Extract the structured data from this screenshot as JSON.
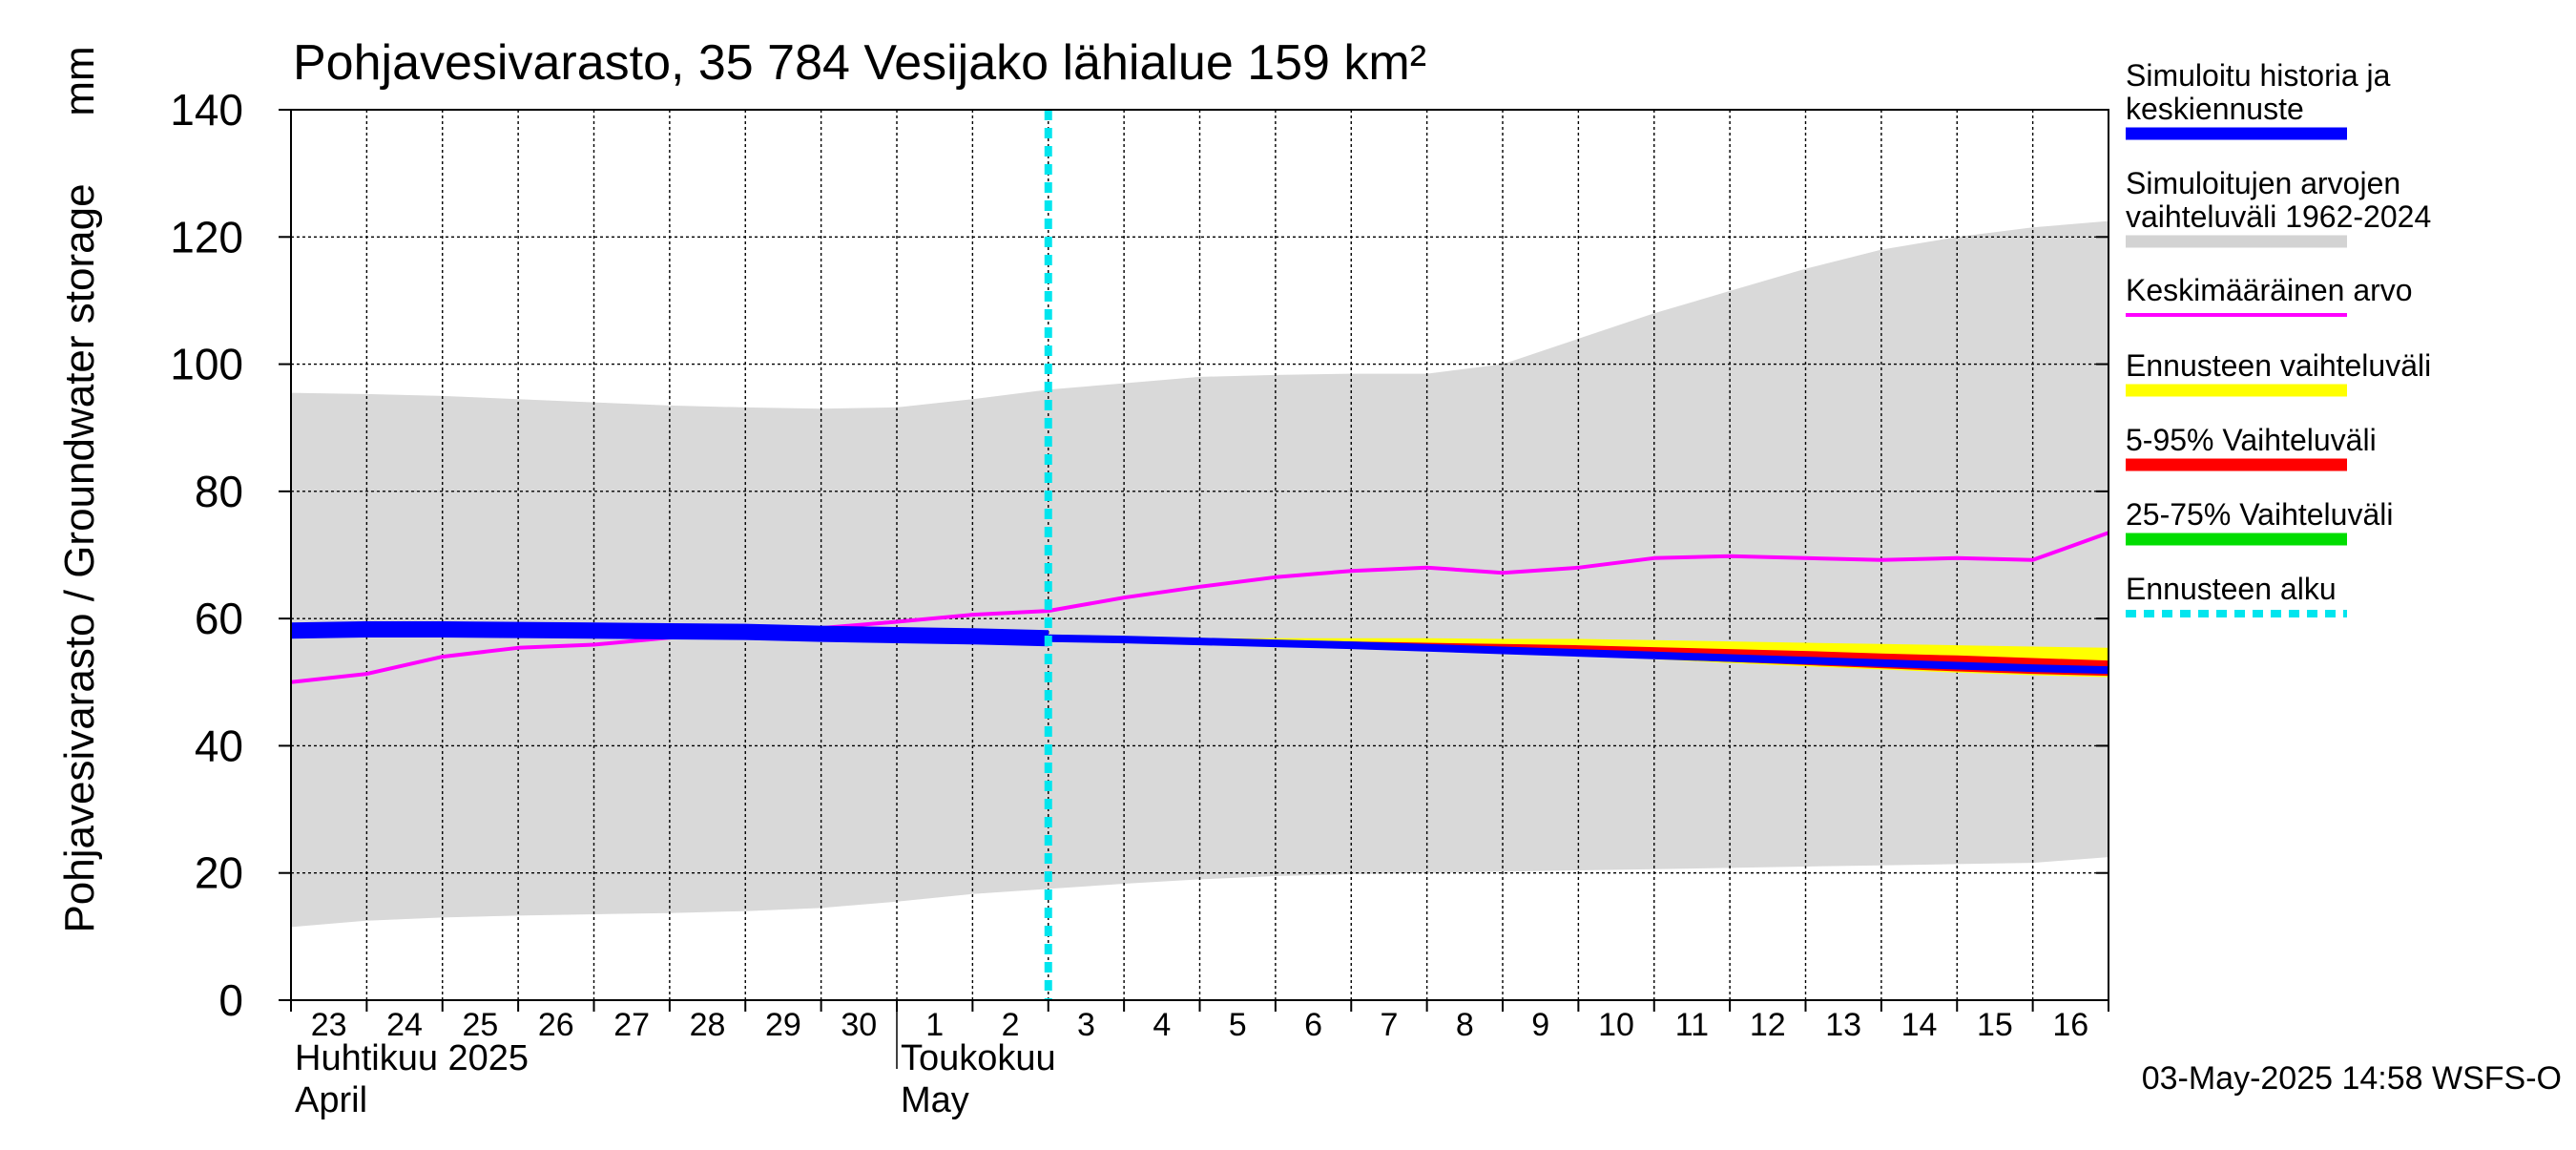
{
  "chart_data": {
    "type": "line",
    "title": "Pohjavesivarasto, 35 784 Vesijako lähialue 159 km²",
    "ylabel": "Pohjavesivarasto / Groundwater storage",
    "yunit": "mm",
    "ylim": [
      0,
      140
    ],
    "yticks": [
      0,
      20,
      40,
      60,
      80,
      100,
      120,
      140
    ],
    "x_day_labels": [
      "23",
      "24",
      "25",
      "26",
      "27",
      "28",
      "29",
      "30",
      "1",
      "2",
      "3",
      "4",
      "5",
      "6",
      "7",
      "8",
      "9",
      "10",
      "11",
      "12",
      "13",
      "14",
      "15",
      "16"
    ],
    "x_dates": [
      "2025-04-23",
      "2025-04-24",
      "2025-04-25",
      "2025-04-26",
      "2025-04-27",
      "2025-04-28",
      "2025-04-29",
      "2025-04-30",
      "2025-05-01",
      "2025-05-02",
      "2025-05-03",
      "2025-05-04",
      "2025-05-05",
      "2025-05-06",
      "2025-05-07",
      "2025-05-08",
      "2025-05-09",
      "2025-05-10",
      "2025-05-11",
      "2025-05-12",
      "2025-05-13",
      "2025-05-14",
      "2025-05-15",
      "2025-05-16",
      "2025-05-17"
    ],
    "month_labels": [
      {
        "fi": "Huhtikuu  2025",
        "en": "April"
      },
      {
        "fi": "Toukokuu",
        "en": "May"
      }
    ],
    "grid": true,
    "forecast_start": "2025-05-03",
    "series": [
      {
        "name": "Simuloitujen arvojen vaihteluväli 1962-2024",
        "kind": "band",
        "color": "#d9d9d9",
        "upper": [
          95.5,
          95.3,
          95,
          94.5,
          94,
          93.5,
          93.2,
          93,
          93.2,
          94.5,
          96,
          97,
          98,
          98.3,
          98.5,
          98.5,
          100,
          104,
          108,
          111.5,
          115,
          118,
          120,
          121.5,
          122.5
        ],
        "lower": [
          11.5,
          12.5,
          13,
          13.3,
          13.5,
          13.7,
          14,
          14.5,
          15.5,
          16.7,
          17.5,
          18.3,
          19,
          19.5,
          19.8,
          20,
          20.2,
          20.4,
          20.6,
          20.8,
          21,
          21.2,
          21.4,
          21.6,
          22.5
        ]
      },
      {
        "name": "Ennusteen vaihteluväli",
        "kind": "band",
        "color": "#ffff00",
        "upper": [
          null,
          null,
          null,
          null,
          null,
          null,
          null,
          null,
          null,
          null,
          56.9,
          56.9,
          56.9,
          56.9,
          56.9,
          56.9,
          56.8,
          56.8,
          56.6,
          56.4,
          56.2,
          56,
          55.8,
          55.6,
          55.4
        ],
        "lower": [
          null,
          null,
          null,
          null,
          null,
          null,
          null,
          null,
          null,
          null,
          56.9,
          56.6,
          56.3,
          56,
          55.6,
          55.2,
          54.7,
          54.2,
          53.6,
          53,
          52.5,
          52,
          51.5,
          51.1,
          50.8
        ]
      },
      {
        "name": "5-95% Vaihteluväli",
        "kind": "band",
        "color": "#ff0000",
        "upper": [
          null,
          null,
          null,
          null,
          null,
          null,
          null,
          null,
          null,
          null,
          56.9,
          56.8,
          56.7,
          56.6,
          56.4,
          56.2,
          56,
          55.8,
          55.5,
          55.2,
          54.9,
          54.5,
          54.2,
          53.8,
          53.4
        ],
        "lower": [
          null,
          null,
          null,
          null,
          null,
          null,
          null,
          null,
          null,
          null,
          56.9,
          56.6,
          56.3,
          56,
          55.6,
          55.2,
          54.7,
          54.3,
          53.7,
          53.2,
          52.7,
          52.2,
          51.7,
          51.3,
          51
        ]
      },
      {
        "name": "25-75% Vaihteluväli",
        "kind": "band",
        "color": "#00dd00",
        "upper": [
          null,
          null,
          null,
          null,
          null,
          null,
          null,
          null,
          null,
          null,
          56.9,
          56.7,
          56.5,
          56.3,
          56,
          55.7,
          55.4,
          55.1,
          54.7,
          54.3,
          53.9,
          53.5,
          53.1,
          52.7,
          52.3
        ],
        "lower": [
          null,
          null,
          null,
          null,
          null,
          null,
          null,
          null,
          null,
          null,
          56.9,
          56.6,
          56.3,
          56,
          55.6,
          55.3,
          54.9,
          54.5,
          54.1,
          53.6,
          53.2,
          52.8,
          52.4,
          52,
          51.7
        ]
      },
      {
        "name": "Keskimääräinen arvo",
        "kind": "line",
        "color": "#ff00ff",
        "values": [
          50,
          51.3,
          54,
          55.4,
          55.9,
          57,
          57.5,
          58.5,
          59.5,
          60.6,
          61.2,
          63.3,
          65,
          66.5,
          67.5,
          68,
          67.2,
          68,
          69.5,
          69.8,
          69.5,
          69.2,
          69.5,
          69.2,
          73.5
        ]
      },
      {
        "name": "Simuloitu historia ja keskiennuste",
        "kind": "line",
        "color": "#0000ff",
        "values": [
          58.1,
          58.3,
          58.3,
          58.2,
          58.1,
          58,
          57.9,
          57.6,
          57.4,
          57.2,
          56.9,
          56.7,
          56.4,
          56.1,
          55.8,
          55.4,
          55,
          54.6,
          54.2,
          53.8,
          53.4,
          53,
          52.6,
          52.2,
          51.9
        ]
      },
      {
        "name": "Ennusteen alku",
        "kind": "vline",
        "color": "#00e5ee",
        "x": "2025-05-03"
      }
    ],
    "legend": {
      "placement": "right",
      "entries": [
        {
          "label": "Simuloitu historia ja keskiennuste",
          "color": "#0000ff",
          "style": "thick"
        },
        {
          "label": "Simuloitujen arvojen vaihteluväli 1962-2024",
          "color": "#d3d3d3",
          "style": "thick"
        },
        {
          "label": "Keskimääräinen arvo",
          "color": "#ff00ff",
          "style": "thin"
        },
        {
          "label": "Ennusteen vaihteluväli",
          "color": "#ffff00",
          "style": "thick"
        },
        {
          "label": "5-95% Vaihteluväli",
          "color": "#ff0000",
          "style": "thick"
        },
        {
          "label": "25-75% Vaihteluväli",
          "color": "#00dd00",
          "style": "thick"
        },
        {
          "label": "Ennusteen alku",
          "color": "#00e5ee",
          "style": "dotted"
        }
      ]
    }
  },
  "footer": {
    "timestamp": "03-May-2025 14:58 WSFS-O"
  }
}
